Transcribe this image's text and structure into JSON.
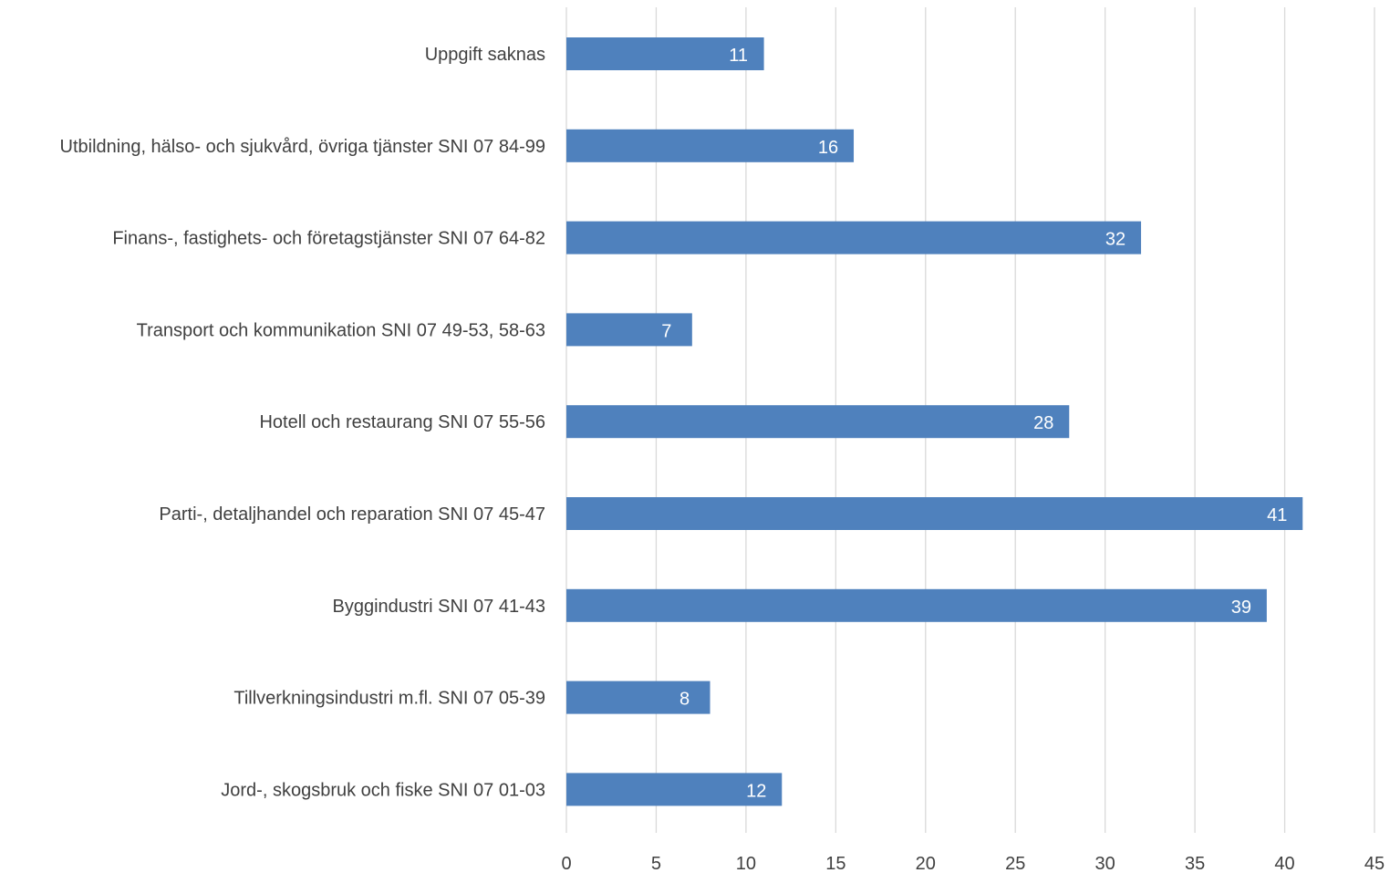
{
  "chart_data": {
    "type": "bar",
    "orientation": "horizontal",
    "title": "",
    "xlabel": "",
    "ylabel": "",
    "categories": [
      "Uppgift saknas",
      "Utbildning, hälso- och sjukvård, övriga tjänster SNI 07 84-99",
      "Finans-, fastighets- och företagstjänster SNI 07 64-82",
      "Transport och kommunikation SNI 07 49-53, 58-63",
      "Hotell och restaurang SNI 07 55-56",
      "Parti-, detaljhandel och reparation SNI 07 45-47",
      "Byggindustri SNI 07 41-43",
      "Tillverkningsindustri m.fl. SNI 07 05-39",
      "Jord-, skogsbruk och fiske SNI 07 01-03"
    ],
    "values": [
      11,
      16,
      32,
      7,
      28,
      41,
      39,
      8,
      12
    ],
    "xlim": [
      0,
      45
    ],
    "x_ticks": [
      0,
      5,
      10,
      15,
      20,
      25,
      30,
      35,
      40,
      45
    ],
    "grid": true,
    "data_labels": true,
    "legend": "none",
    "bar_color": "#4f81bd",
    "grid_color": "#d9d9d9",
    "text_color": "#404040",
    "label_color": "#ffffff"
  }
}
